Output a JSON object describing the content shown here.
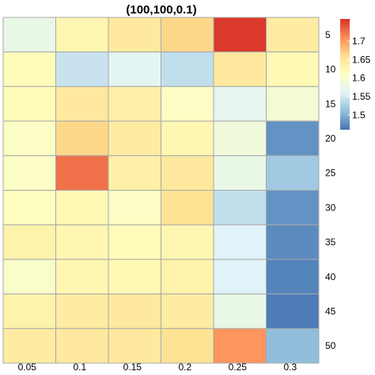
{
  "chart_data": {
    "type": "heatmap",
    "title": "(100,100,0.1)",
    "x_labels": [
      "0.05",
      "0.1",
      "0.15",
      "0.2",
      "0.25",
      "0.3"
    ],
    "y_labels": [
      "5",
      "10",
      "15",
      "20",
      "25",
      "30",
      "35",
      "40",
      "45",
      "50"
    ],
    "values": [
      [
        1.575,
        1.625,
        1.645,
        1.665,
        1.755,
        1.64
      ],
      [
        1.615,
        1.545,
        1.565,
        1.54,
        1.645,
        1.62
      ],
      [
        1.615,
        1.645,
        1.635,
        1.605,
        1.57,
        1.59
      ],
      [
        1.605,
        1.665,
        1.64,
        1.625,
        1.585,
        1.48
      ],
      [
        1.605,
        1.725,
        1.635,
        1.645,
        1.575,
        1.52
      ],
      [
        1.61,
        1.62,
        1.605,
        1.655,
        1.54,
        1.48
      ],
      [
        1.63,
        1.625,
        1.615,
        1.625,
        1.56,
        1.475
      ],
      [
        1.6,
        1.625,
        1.62,
        1.63,
        1.56,
        1.47
      ],
      [
        1.63,
        1.64,
        1.645,
        1.64,
        1.575,
        1.465
      ],
      [
        1.64,
        1.645,
        1.645,
        1.655,
        1.705,
        1.51
      ]
    ],
    "color_range": [
      1.46,
      1.76
    ],
    "colorbar": {
      "ticks": [
        1.5,
        1.55,
        1.6,
        1.65,
        1.7
      ],
      "tick_labels": [
        "1.5",
        "1.55",
        "1.6",
        "1.65",
        "1.7"
      ],
      "colors": [
        "#4575b4",
        "#91bfdb",
        "#e0f3f8",
        "#ffffbf",
        "#fee090",
        "#fc8d59",
        "#d73027"
      ]
    },
    "grid": true,
    "legend_position": "top-right"
  }
}
